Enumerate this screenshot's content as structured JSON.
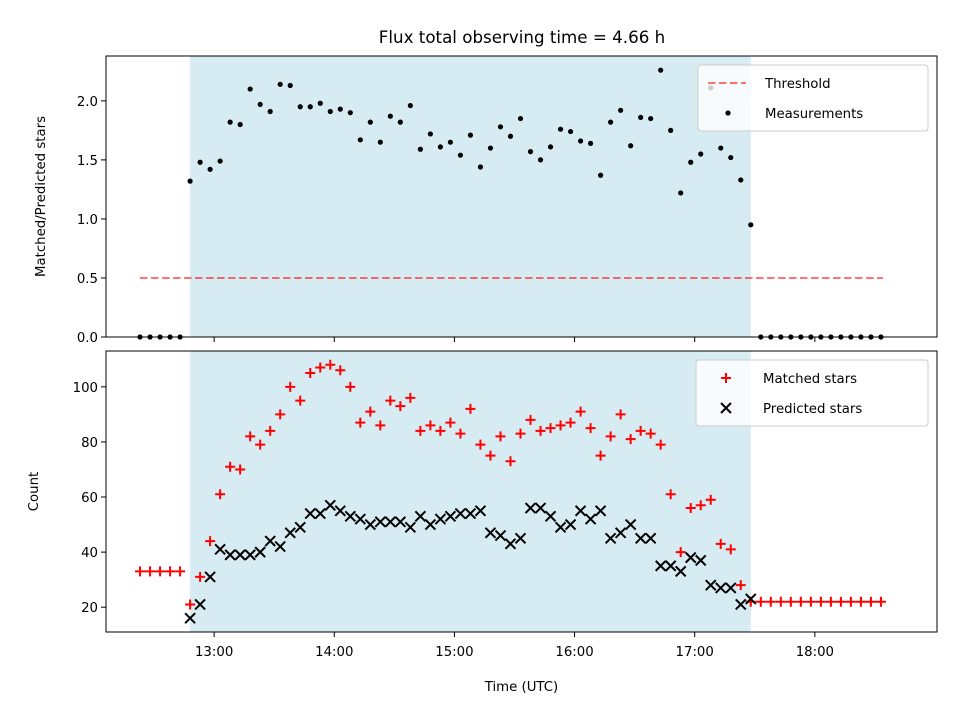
{
  "title": "Flux total observing time = 4.66 h",
  "colors": {
    "shade": "#add8e6",
    "threshold": "#ff0000",
    "measurements": "#000000",
    "matched": "#ff0000",
    "predicted": "#000000"
  },
  "chart_data": [
    {
      "type": "scatter",
      "ylabel": "Matched/Predicted stars",
      "xlabel": "",
      "ylim": [
        0,
        2.38
      ],
      "yticks": [
        "0.0",
        "0.5",
        "1.0",
        "1.5",
        "2.0"
      ],
      "xlim": [
        "12:06",
        "19:01"
      ],
      "observing_window": [
        "12:48",
        "17:28"
      ],
      "legend_position": "top-right",
      "legend": [
        "Threshold",
        "Measurements"
      ],
      "threshold": {
        "name": "Threshold",
        "value": 0.5,
        "x": [
          "12:23",
          "18:34"
        ]
      },
      "series": [
        {
          "name": "Measurements",
          "x": [
            "12:23",
            "12:28",
            "12:33",
            "12:38",
            "12:43",
            "12:48",
            "12:53",
            "12:58",
            "13:03",
            "13:08",
            "13:13",
            "13:18",
            "13:23",
            "13:28",
            "13:33",
            "13:38",
            "13:43",
            "13:48",
            "13:53",
            "13:58",
            "14:03",
            "14:08",
            "14:13",
            "14:18",
            "14:23",
            "14:28",
            "14:33",
            "14:38",
            "14:43",
            "14:48",
            "14:53",
            "14:58",
            "15:03",
            "15:08",
            "15:13",
            "15:18",
            "15:23",
            "15:28",
            "15:33",
            "15:38",
            "15:43",
            "15:48",
            "15:53",
            "15:58",
            "16:03",
            "16:08",
            "16:13",
            "16:18",
            "16:23",
            "16:28",
            "16:33",
            "16:38",
            "16:43",
            "16:48",
            "16:53",
            "16:58",
            "17:03",
            "17:08",
            "17:13",
            "17:18",
            "17:23",
            "17:28",
            "17:33",
            "17:38",
            "17:43",
            "17:48",
            "17:53",
            "17:58",
            "18:03",
            "18:08",
            "18:13",
            "18:18",
            "18:23",
            "18:28",
            "18:33"
          ],
          "values": [
            0,
            0,
            0,
            0,
            0,
            1.32,
            1.48,
            1.42,
            1.49,
            1.82,
            1.8,
            2.1,
            1.97,
            1.91,
            2.14,
            2.13,
            1.95,
            1.95,
            1.98,
            1.91,
            1.93,
            1.9,
            1.67,
            1.82,
            1.65,
            1.87,
            1.82,
            1.96,
            1.59,
            1.72,
            1.61,
            1.65,
            1.54,
            1.71,
            1.44,
            1.6,
            1.78,
            1.7,
            1.85,
            1.57,
            1.5,
            1.61,
            1.76,
            1.74,
            1.66,
            1.64,
            1.37,
            1.82,
            1.92,
            1.62,
            1.86,
            1.85,
            2.26,
            1.75,
            1.22,
            1.48,
            1.55,
            2.11,
            1.6,
            1.52,
            1.33,
            0.95,
            0,
            0,
            0,
            0,
            0,
            0,
            0,
            0,
            0,
            0,
            0,
            0,
            0
          ]
        }
      ]
    },
    {
      "type": "scatter",
      "ylabel": "Count",
      "xlabel": "Time (UTC)",
      "ylim": [
        11,
        113
      ],
      "yticks": [
        "20",
        "40",
        "60",
        "80",
        "100"
      ],
      "xlim": [
        "12:06",
        "19:01"
      ],
      "xticks": [
        "13:00",
        "14:00",
        "15:00",
        "16:00",
        "17:00",
        "18:00"
      ],
      "observing_window": [
        "12:48",
        "17:28"
      ],
      "legend_position": "top-right",
      "legend": [
        "Matched stars",
        "Predicted stars"
      ],
      "series": [
        {
          "name": "Matched stars",
          "x": [
            "12:23",
            "12:28",
            "12:33",
            "12:38",
            "12:43",
            "12:48",
            "12:53",
            "12:58",
            "13:03",
            "13:08",
            "13:13",
            "13:18",
            "13:23",
            "13:28",
            "13:33",
            "13:38",
            "13:43",
            "13:48",
            "13:53",
            "13:58",
            "14:03",
            "14:08",
            "14:13",
            "14:18",
            "14:23",
            "14:28",
            "14:33",
            "14:38",
            "14:43",
            "14:48",
            "14:53",
            "14:58",
            "15:03",
            "15:08",
            "15:13",
            "15:18",
            "15:23",
            "15:28",
            "15:33",
            "15:38",
            "15:43",
            "15:48",
            "15:53",
            "15:58",
            "16:03",
            "16:08",
            "16:13",
            "16:18",
            "16:23",
            "16:28",
            "16:33",
            "16:38",
            "16:43",
            "16:48",
            "16:53",
            "16:58",
            "17:03",
            "17:08",
            "17:13",
            "17:18",
            "17:23",
            "17:28",
            "17:33",
            "17:38",
            "17:43",
            "17:48",
            "17:53",
            "17:58",
            "18:03",
            "18:08",
            "18:13",
            "18:18",
            "18:23",
            "18:28",
            "18:33"
          ],
          "values": [
            33,
            33,
            33,
            33,
            33,
            21,
            31,
            44,
            61,
            71,
            70,
            82,
            79,
            84,
            90,
            100,
            95,
            105,
            107,
            108,
            106,
            100,
            87,
            91,
            86,
            95,
            93,
            96,
            84,
            86,
            84,
            87,
            83,
            92,
            79,
            75,
            82,
            73,
            83,
            88,
            84,
            85,
            86,
            87,
            91,
            85,
            75,
            82,
            90,
            81,
            84,
            83,
            79,
            61,
            40,
            56,
            57,
            59,
            43,
            41,
            28,
            22,
            22,
            22,
            22,
            22,
            22,
            22,
            22,
            22,
            22,
            22,
            22,
            22,
            22
          ]
        },
        {
          "name": "Predicted stars",
          "x": [
            "12:48",
            "12:53",
            "12:58",
            "13:03",
            "13:08",
            "13:13",
            "13:18",
            "13:23",
            "13:28",
            "13:33",
            "13:38",
            "13:43",
            "13:48",
            "13:53",
            "13:58",
            "14:03",
            "14:08",
            "14:13",
            "14:18",
            "14:23",
            "14:28",
            "14:33",
            "14:38",
            "14:43",
            "14:48",
            "14:53",
            "14:58",
            "15:03",
            "15:08",
            "15:13",
            "15:18",
            "15:23",
            "15:28",
            "15:33",
            "15:38",
            "15:43",
            "15:48",
            "15:53",
            "15:58",
            "16:03",
            "16:08",
            "16:13",
            "16:18",
            "16:23",
            "16:28",
            "16:33",
            "16:38",
            "16:43",
            "16:48",
            "16:53",
            "16:58",
            "17:03",
            "17:08",
            "17:13",
            "17:18",
            "17:23",
            "17:28"
          ],
          "values": [
            16,
            21,
            31,
            41,
            39,
            39,
            39,
            40,
            44,
            42,
            47,
            49,
            54,
            54,
            57,
            55,
            53,
            52,
            50,
            51,
            51,
            51,
            49,
            53,
            50,
            52,
            53,
            54,
            54,
            55,
            47,
            46,
            43,
            45,
            56,
            56,
            53,
            49,
            50,
            55,
            52,
            55,
            45,
            47,
            50,
            45,
            45,
            35,
            35,
            33,
            38,
            37,
            28,
            27,
            27,
            21,
            23
          ]
        }
      ]
    }
  ]
}
